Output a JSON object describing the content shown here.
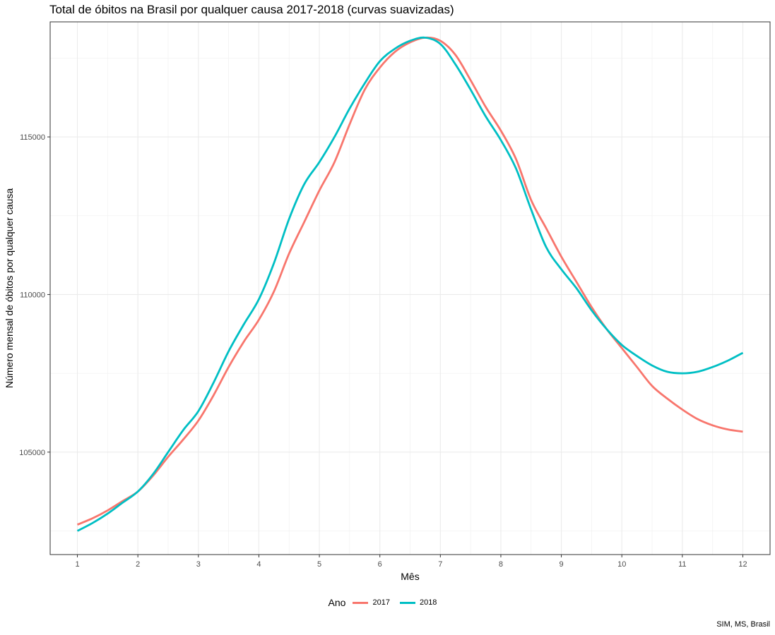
{
  "chart_data": {
    "type": "line",
    "title": "Total de óbitos na Brasil por qualquer causa 2017-2018 (curvas suavizadas)",
    "xlabel": "Mês",
    "ylabel": "Número mensal de óbitos por qualquer causa",
    "caption": "SIM, MS, Brasil",
    "x": [
      1,
      1.25,
      1.5,
      1.75,
      2,
      2.25,
      2.5,
      2.75,
      3,
      3.25,
      3.5,
      3.75,
      4,
      4.25,
      4.5,
      4.75,
      5,
      5.25,
      5.5,
      5.75,
      6,
      6.25,
      6.5,
      6.75,
      7,
      7.25,
      7.5,
      7.75,
      8,
      8.25,
      8.5,
      8.75,
      9,
      9.25,
      9.5,
      9.75,
      10,
      10.25,
      10.5,
      10.75,
      11,
      11.25,
      11.5,
      11.75,
      12
    ],
    "x_ticks": [
      "1",
      "2",
      "3",
      "4",
      "5",
      "6",
      "7",
      "8",
      "9",
      "10",
      "11",
      "12"
    ],
    "y_ticks": [
      "105000",
      "110000",
      "115000"
    ],
    "xlim": [
      0.55,
      12.45
    ],
    "ylim": [
      101750,
      118650
    ],
    "grid": true,
    "legend_title": "Ano",
    "legend_position": "bottom",
    "series": [
      {
        "name": "2017",
        "color": "#F8766D",
        "values": [
          102700,
          102900,
          103150,
          103450,
          103750,
          104250,
          104850,
          105400,
          106000,
          106800,
          107700,
          108500,
          109200,
          110100,
          111300,
          112300,
          113300,
          114200,
          115400,
          116500,
          117200,
          117700,
          118000,
          118150,
          118050,
          117600,
          116800,
          115950,
          115200,
          114300,
          113000,
          112100,
          111200,
          110400,
          109600,
          108900,
          108300,
          107700,
          107100,
          106700,
          106350,
          106050,
          105850,
          105720,
          105650
        ]
      },
      {
        "name": "2018",
        "color": "#00BFC4",
        "values": [
          102500,
          102750,
          103050,
          103400,
          103750,
          104300,
          105000,
          105700,
          106300,
          107200,
          108200,
          109050,
          109850,
          111000,
          112400,
          113500,
          114200,
          115000,
          115900,
          116700,
          117400,
          117800,
          118050,
          118150,
          117950,
          117300,
          116500,
          115650,
          114900,
          114000,
          112700,
          111500,
          110800,
          110200,
          109500,
          108900,
          108400,
          108050,
          107750,
          107550,
          107500,
          107550,
          107700,
          107900,
          108150
        ]
      }
    ]
  }
}
